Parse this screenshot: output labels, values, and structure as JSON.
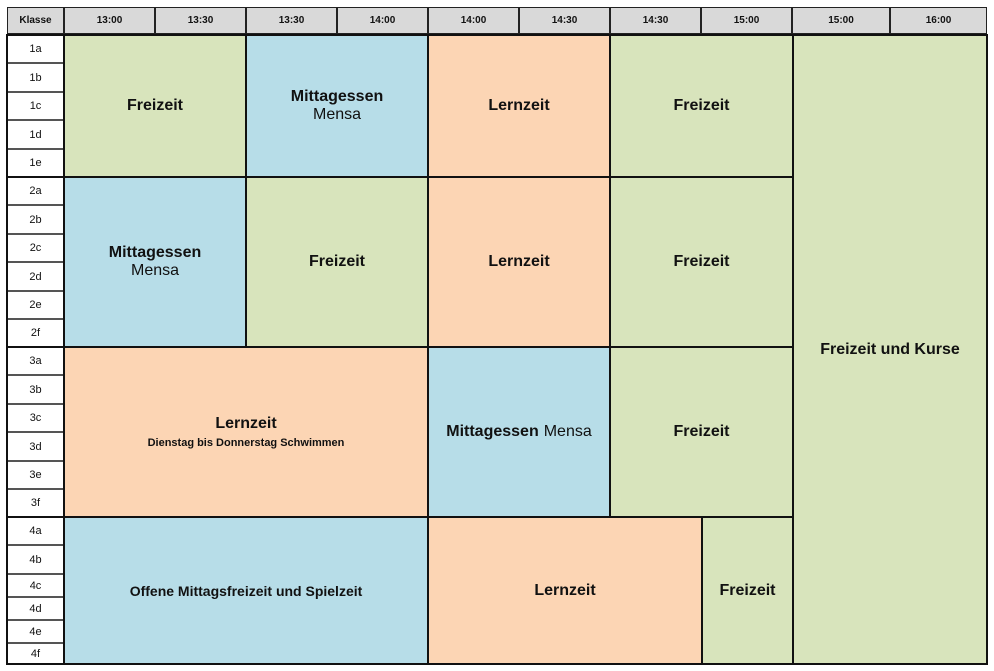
{
  "header": {
    "klasse": "Klasse",
    "times": [
      "13:00",
      "13:30",
      "13:30",
      "14:00",
      "14:00",
      "14:30",
      "14:30",
      "15:00",
      "15:00",
      "16:00"
    ]
  },
  "rows": [
    "1a",
    "1b",
    "1c",
    "1d",
    "1e",
    "2a",
    "2b",
    "2c",
    "2d",
    "2e",
    "2f",
    "3a",
    "3b",
    "3c",
    "3d",
    "3e",
    "3f",
    "4a",
    "4b",
    "4c",
    "4d",
    "4e",
    "4f"
  ],
  "blocks": {
    "g1_freizeit": "Freizeit",
    "g1_mittag_title": "Mittagessen",
    "g1_mittag_sub": "Mensa",
    "g1_lernzeit": "Lernzeit",
    "g1_freizeit2": "Freizeit",
    "g2_mittag_title": "Mittagessen",
    "g2_mittag_sub": "Mensa",
    "g2_freizeit": "Freizeit",
    "g2_lernzeit": "Lernzeit",
    "g2_freizeit2": "Freizeit",
    "g3_lernzeit_title": "Lernzeit",
    "g3_lernzeit_note": "Dienstag bis Donnerstag Schwimmen",
    "g3_mittag_title": "Mittagessen",
    "g3_mittag_sub": "Mensa",
    "g3_freizeit": "Freizeit",
    "g4_offene": "Offene Mittagsfreizeit und Spielzeit",
    "g4_lernzeit": "Lernzeit",
    "g4_freizeit": "Freizeit",
    "kurse": "Freizeit und Kurse"
  }
}
